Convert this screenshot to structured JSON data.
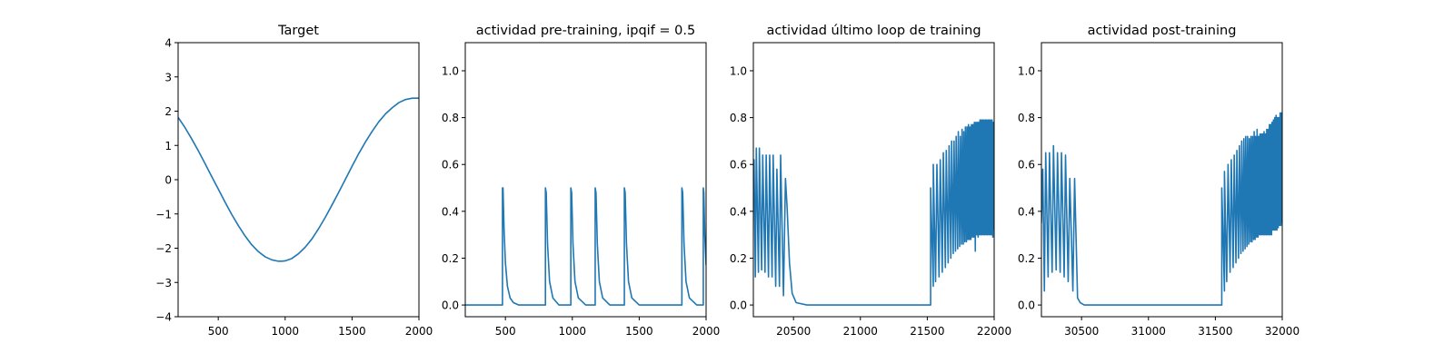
{
  "chart_data": [
    {
      "type": "line",
      "title": "Target",
      "xlim": [
        200,
        2000
      ],
      "ylim": [
        -4,
        4
      ],
      "xticks": [
        500,
        1000,
        1500,
        2000
      ],
      "yticks": [
        -4,
        -3,
        -2,
        -1,
        0,
        1,
        2,
        3,
        4
      ],
      "xtick_labels": [
        "500",
        "1000",
        "1500",
        "2000"
      ],
      "ytick_labels": [
        "−4",
        "−3",
        "−2",
        "−1",
        "0",
        "1",
        "2",
        "3",
        "4"
      ],
      "series": [
        {
          "color": "#1f77b4",
          "x": [
            200,
            250,
            300,
            350,
            400,
            450,
            500,
            550,
            600,
            650,
            700,
            750,
            800,
            850,
            900,
            950,
            975,
            1000,
            1050,
            1100,
            1150,
            1200,
            1250,
            1300,
            1350,
            1400,
            1450,
            1500,
            1550,
            1600,
            1650,
            1700,
            1750,
            1800,
            1850,
            1900,
            1950,
            2000
          ],
          "y": [
            1.82,
            1.53,
            1.2,
            0.85,
            0.48,
            0.1,
            -0.27,
            -0.65,
            -1.01,
            -1.34,
            -1.64,
            -1.9,
            -2.1,
            -2.25,
            -2.34,
            -2.38,
            -2.38,
            -2.37,
            -2.3,
            -2.16,
            -1.97,
            -1.73,
            -1.43,
            -1.1,
            -0.74,
            -0.37,
            0.01,
            0.39,
            0.76,
            1.1,
            1.41,
            1.69,
            1.92,
            2.1,
            2.25,
            2.34,
            2.38,
            2.38
          ]
        }
      ]
    },
    {
      "type": "line",
      "title": "actividad pre-training, ipqif = 0.5",
      "xlim": [
        200,
        2000
      ],
      "ylim": [
        -0.05,
        1.12
      ],
      "xticks": [
        500,
        1000,
        1500,
        2000
      ],
      "yticks": [
        0,
        0.2,
        0.4,
        0.6,
        0.8,
        1.0
      ],
      "xtick_labels": [
        "500",
        "1000",
        "1500",
        "2000"
      ],
      "ytick_labels": [
        "0.0",
        "0.2",
        "0.4",
        "0.6",
        "0.8",
        "1.0"
      ],
      "series": [
        {
          "color": "#1f77b4",
          "x": [
            200,
            478,
            478,
            482,
            490,
            500,
            515,
            535,
            560,
            600,
            799,
            799,
            805,
            815,
            830,
            855,
            900,
            989,
            989,
            995,
            1005,
            1020,
            1045,
            1100,
            1171,
            1171,
            1177,
            1187,
            1202,
            1227,
            1280,
            1389,
            1389,
            1395,
            1405,
            1420,
            1445,
            1500,
            1819,
            1819,
            1825,
            1835,
            1850,
            1875,
            1930,
            1979,
            1979,
            1983,
            1990,
            2000
          ],
          "y": [
            0,
            0,
            0.5,
            0.5,
            0.32,
            0.18,
            0.08,
            0.03,
            0.01,
            0,
            0,
            0.5,
            0.48,
            0.26,
            0.1,
            0.03,
            0,
            0,
            0.5,
            0.48,
            0.26,
            0.1,
            0.03,
            0,
            0,
            0.5,
            0.48,
            0.26,
            0.1,
            0.03,
            0,
            0,
            0.5,
            0.48,
            0.26,
            0.1,
            0.03,
            0,
            0,
            0.5,
            0.48,
            0.26,
            0.1,
            0.03,
            0,
            0,
            0.5,
            0.48,
            0.3,
            0.17
          ]
        }
      ]
    },
    {
      "type": "line",
      "title": "actividad último loop de training",
      "xlim": [
        20200,
        22000
      ],
      "ylim": [
        -0.05,
        1.12
      ],
      "xticks": [
        20500,
        21000,
        21500,
        22000
      ],
      "yticks": [
        0,
        0.2,
        0.4,
        0.6,
        0.8,
        1.0
      ],
      "xtick_labels": [
        "20500",
        "21000",
        "21500",
        "22000"
      ],
      "ytick_labels": [
        "0.0",
        "0.2",
        "0.4",
        "0.6",
        "0.8",
        "1.0"
      ],
      "series": [
        {
          "color": "#1f77b4",
          "x": [
            20200,
            20205,
            20215,
            20222,
            20238,
            20245,
            20262,
            20270,
            20287,
            20296,
            20313,
            20322,
            20340,
            20348,
            20367,
            20376,
            20395,
            20404,
            20425,
            20440,
            20452,
            20470,
            20490,
            20520,
            20600,
            21000,
            21525,
            21525,
            21545,
            21545,
            21562,
            21572,
            21588,
            21597,
            21612,
            21620,
            21635,
            21642,
            21656,
            21663,
            21676,
            21682,
            21694,
            21700,
            21711,
            21716,
            21727,
            21732,
            21742,
            21747,
            21756,
            21760,
            21769,
            21773,
            21781,
            21785,
            21793,
            21797,
            21804,
            21808,
            21815,
            21819,
            21826,
            21830,
            21837,
            21841,
            21848,
            21852,
            21859,
            21863,
            21870,
            21874,
            21880,
            21884,
            21890,
            21894,
            21900,
            21904,
            21910,
            21914,
            21920,
            21924,
            21930,
            21934,
            21940,
            21944,
            21950,
            21954,
            21960,
            21964,
            21970,
            21974,
            21980,
            21984,
            21990,
            21994,
            22000
          ],
          "y": [
            0.55,
            0.62,
            0.12,
            0.67,
            0.14,
            0.67,
            0.15,
            0.64,
            0.14,
            0.64,
            0.12,
            0.64,
            0.12,
            0.64,
            0.08,
            0.58,
            0.08,
            0.64,
            0.04,
            0.54,
            0.42,
            0.18,
            0.05,
            0.01,
            0,
            0,
            0,
            0.5,
            0.08,
            0.6,
            0.1,
            0.6,
            0.12,
            0.62,
            0.14,
            0.65,
            0.16,
            0.66,
            0.18,
            0.68,
            0.2,
            0.7,
            0.22,
            0.7,
            0.23,
            0.72,
            0.24,
            0.74,
            0.25,
            0.72,
            0.26,
            0.75,
            0.26,
            0.74,
            0.27,
            0.76,
            0.27,
            0.76,
            0.28,
            0.77,
            0.28,
            0.76,
            0.28,
            0.77,
            0.29,
            0.77,
            0.29,
            0.78,
            0.23,
            0.78,
            0.3,
            0.78,
            0.29,
            0.78,
            0.3,
            0.79,
            0.3,
            0.79,
            0.3,
            0.79,
            0.3,
            0.79,
            0.3,
            0.79,
            0.3,
            0.79,
            0.3,
            0.79,
            0.3,
            0.79,
            0.3,
            0.79,
            0.3,
            0.79,
            0.29,
            0.78,
            0.32
          ]
        }
      ]
    },
    {
      "type": "line",
      "title": "actividad post-training",
      "xlim": [
        30200,
        32000
      ],
      "ylim": [
        -0.05,
        1.12
      ],
      "xticks": [
        30500,
        31000,
        31500,
        32000
      ],
      "yticks": [
        0,
        0.2,
        0.4,
        0.6,
        0.8,
        1.0
      ],
      "xtick_labels": [
        "30500",
        "31000",
        "31500",
        "32000"
      ],
      "ytick_labels": [
        "0.0",
        "0.2",
        "0.4",
        "0.6",
        "0.8",
        "1.0"
      ],
      "series": [
        {
          "color": "#1f77b4",
          "x": [
            30200,
            30210,
            30222,
            30232,
            30250,
            30260,
            30280,
            30290,
            30310,
            30320,
            30340,
            30350,
            30370,
            30380,
            30400,
            30412,
            30435,
            30448,
            30470,
            30490,
            30520,
            30600,
            31000,
            31548,
            31548,
            31568,
            31568,
            31585,
            31595,
            31610,
            31619,
            31633,
            31641,
            31654,
            31661,
            31673,
            31680,
            31691,
            31697,
            31707,
            31713,
            31722,
            31727,
            31736,
            31741,
            31749,
            31754,
            31762,
            31766,
            31774,
            31778,
            31786,
            31790,
            31797,
            31801,
            31808,
            31812,
            31819,
            31823,
            31830,
            31834,
            31840,
            31844,
            31850,
            31854,
            31860,
            31864,
            31870,
            31874,
            31880,
            31884,
            31890,
            31894,
            31900,
            31904,
            31910,
            31914,
            31920,
            31924,
            31930,
            31934,
            31940,
            31944,
            31950,
            31954,
            31960,
            31964,
            31970,
            31974,
            31980,
            31984,
            31990,
            31994,
            32000
          ],
          "y": [
            0.35,
            0.58,
            0.06,
            0.65,
            0.12,
            0.65,
            0.14,
            0.68,
            0.15,
            0.65,
            0.14,
            0.65,
            0.12,
            0.64,
            0.1,
            0.54,
            0.06,
            0.54,
            0.03,
            0.01,
            0,
            0,
            0,
            0,
            0.5,
            0.06,
            0.57,
            0.1,
            0.6,
            0.14,
            0.62,
            0.16,
            0.64,
            0.18,
            0.66,
            0.2,
            0.68,
            0.22,
            0.7,
            0.23,
            0.71,
            0.24,
            0.72,
            0.25,
            0.72,
            0.26,
            0.71,
            0.27,
            0.72,
            0.27,
            0.72,
            0.28,
            0.74,
            0.28,
            0.72,
            0.29,
            0.75,
            0.29,
            0.72,
            0.3,
            0.73,
            0.3,
            0.73,
            0.3,
            0.73,
            0.3,
            0.74,
            0.3,
            0.73,
            0.3,
            0.75,
            0.3,
            0.75,
            0.3,
            0.77,
            0.3,
            0.77,
            0.3,
            0.78,
            0.32,
            0.79,
            0.32,
            0.8,
            0.32,
            0.81,
            0.32,
            0.8,
            0.33,
            0.8,
            0.34,
            0.82,
            0.34,
            0.82,
            0.35
          ]
        }
      ]
    }
  ]
}
